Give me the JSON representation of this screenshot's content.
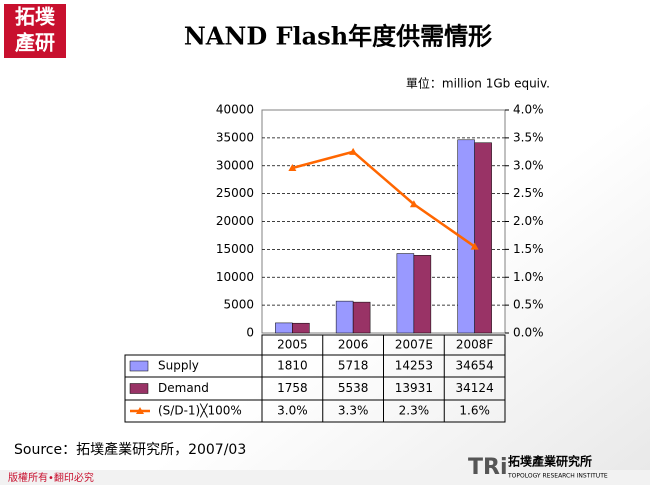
{
  "header": {
    "title": "NAND Flash年度供需情形",
    "logo_top": "拓墣",
    "logo_bottom": "產研"
  },
  "chart_data": {
    "type": "bar",
    "unit_label": "單位：million 1Gb equiv.",
    "categories": [
      "2005",
      "2006",
      "2007E",
      "2008F"
    ],
    "series": [
      {
        "name": "Supply",
        "color": "#9999ff",
        "values": [
          1810,
          5718,
          14253,
          34654
        ]
      },
      {
        "name": "Demand",
        "color": "#993366",
        "values": [
          1758,
          5538,
          13931,
          34124
        ]
      },
      {
        "name": "(S/D-1)╳100%",
        "color": "#ff6600",
        "type": "line",
        "axis": "y2",
        "values": [
          2.96,
          3.25,
          2.31,
          1.55
        ],
        "value_labels": [
          "3.0%",
          "3.3%",
          "2.3%",
          "1.6%"
        ]
      }
    ],
    "ylim": [
      0,
      40000
    ],
    "yticks": [
      0,
      5000,
      10000,
      15000,
      20000,
      25000,
      30000,
      35000,
      40000
    ],
    "y2lim": [
      0,
      4
    ],
    "y2ticks": [
      {
        "value": 0,
        "label": "0.0%"
      },
      {
        "value": 0.5,
        "label": "0.5%"
      },
      {
        "value": 1,
        "label": "1.0%"
      },
      {
        "value": 1.5,
        "label": "1.5%"
      },
      {
        "value": 2,
        "label": "2.0%"
      },
      {
        "value": 2.5,
        "label": "2.5%"
      },
      {
        "value": 3,
        "label": "3.0%"
      },
      {
        "value": 3.5,
        "label": "3.5%"
      },
      {
        "value": 4,
        "label": "4.0%"
      }
    ],
    "grid": true
  },
  "footer": {
    "source": "Source：拓墣產業研究所，2007/03",
    "copyright": "版權所有•翻印必究",
    "brand": "TRi",
    "brand_name": "拓墣產業研究所",
    "brand_en": "TOPOLOGY RESEARCH INSTITUTE"
  }
}
